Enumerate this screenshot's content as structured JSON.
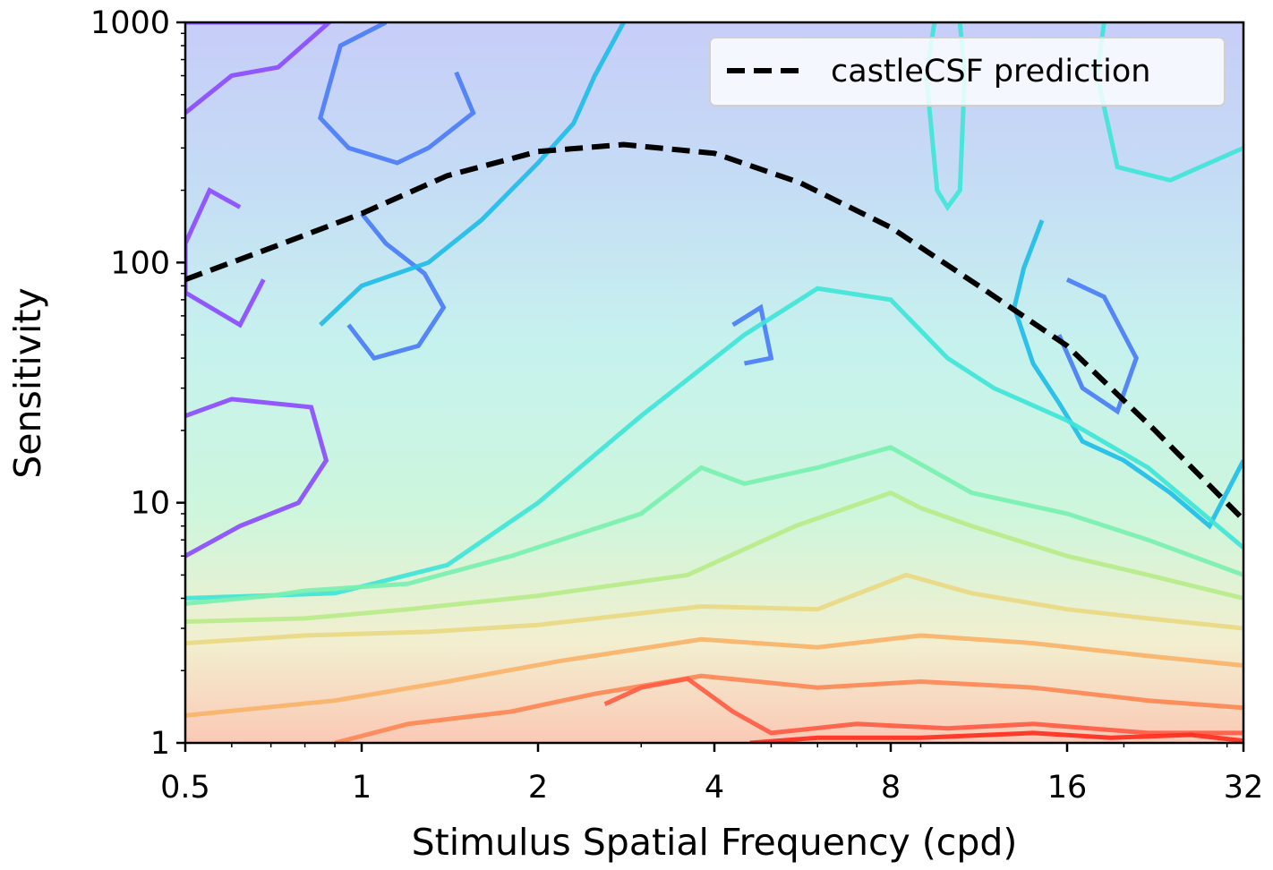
{
  "chart_data": {
    "type": "contour",
    "x_scale": "log2",
    "y_scale": "log10",
    "xlim": [
      0.5,
      32
    ],
    "ylim": [
      1,
      1000
    ],
    "xlabel": "Stimulus Spatial Frequency (cpd)",
    "ylabel": "Sensitivity",
    "x_ticks": [
      0.5,
      1,
      2,
      4,
      8,
      16,
      32
    ],
    "x_tick_labels": [
      "0.5",
      "1",
      "2",
      "4",
      "8",
      "16",
      "32"
    ],
    "y_ticks": [
      1,
      10,
      100,
      1000
    ],
    "y_tick_labels": [
      "1",
      "10",
      "100",
      "1000"
    ],
    "grid": false,
    "legend": {
      "placement": "top-right",
      "entries": [
        {
          "label": "castleCSF prediction",
          "style": "dashed",
          "color": "#000000"
        }
      ]
    },
    "colormap": "rainbow",
    "series": [
      {
        "name": "castleCSF prediction",
        "kind": "line",
        "x": [
          0.5,
          0.7,
          1,
          1.4,
          2,
          2.8,
          4,
          5.6,
          8,
          11.3,
          16,
          22.6,
          32
        ],
        "y": [
          85,
          115,
          160,
          230,
          290,
          310,
          285,
          215,
          140,
          80,
          45,
          20,
          8.5
        ]
      }
    ],
    "contour_bands": [
      {
        "level": 0,
        "color": "#8b4cff",
        "points": [
          [
            0.5,
            1000
          ],
          [
            0.88,
            1000
          ],
          [
            0.72,
            650
          ],
          [
            0.6,
            600
          ],
          [
            0.5,
            420
          ]
        ]
      },
      {
        "level": 0,
        "color": "#8b4cff",
        "points": [
          [
            0.5,
            23
          ],
          [
            0.6,
            27
          ],
          [
            0.82,
            25
          ],
          [
            0.87,
            15
          ],
          [
            0.78,
            10
          ],
          [
            0.62,
            8
          ],
          [
            0.5,
            6
          ]
        ]
      },
      {
        "level": 0,
        "color": "#8b4cff",
        "points": [
          [
            0.62,
            170
          ],
          [
            0.55,
            200
          ],
          [
            0.5,
            120
          ],
          [
            0.5,
            75
          ],
          [
            0.62,
            55
          ],
          [
            0.68,
            85
          ]
        ]
      },
      {
        "level": 1,
        "color": "#4a7df7",
        "points": [
          [
            1.1,
            1000
          ],
          [
            0.92,
            800
          ],
          [
            0.85,
            400
          ],
          [
            0.95,
            300
          ],
          [
            1.15,
            260
          ],
          [
            1.3,
            300
          ],
          [
            1.55,
            420
          ],
          [
            1.45,
            620
          ]
        ]
      },
      {
        "level": 1,
        "color": "#4a7df7",
        "points": [
          [
            1.0,
            160
          ],
          [
            1.1,
            120
          ],
          [
            1.28,
            90
          ],
          [
            1.38,
            65
          ],
          [
            1.25,
            45
          ],
          [
            1.05,
            40
          ],
          [
            0.95,
            55
          ]
        ]
      },
      {
        "level": 1,
        "color": "#4a7df7",
        "points": [
          [
            16,
            85
          ],
          [
            18.5,
            72
          ],
          [
            21,
            40
          ],
          [
            19.5,
            24
          ],
          [
            17,
            30
          ],
          [
            15.5,
            50
          ]
        ]
      },
      {
        "level": 1,
        "color": "#4a7df7",
        "points": [
          [
            4.3,
            55
          ],
          [
            4.8,
            65
          ],
          [
            5.0,
            40
          ],
          [
            4.5,
            38
          ]
        ]
      },
      {
        "level": 2,
        "color": "#1fbde8",
        "points": [
          [
            2.8,
            1000
          ],
          [
            2.5,
            600
          ],
          [
            2.3,
            380
          ],
          [
            2.0,
            260
          ],
          [
            1.6,
            150
          ],
          [
            1.3,
            100
          ],
          [
            1.0,
            80
          ],
          [
            0.85,
            55
          ]
        ]
      },
      {
        "level": 2,
        "color": "#1fbde8",
        "points": [
          [
            14.5,
            150
          ],
          [
            13.5,
            95
          ],
          [
            13,
            65
          ],
          [
            14,
            38
          ],
          [
            15.5,
            26
          ],
          [
            17,
            18
          ],
          [
            20,
            15
          ],
          [
            24,
            11
          ],
          [
            28,
            8
          ],
          [
            32,
            15
          ]
        ]
      },
      {
        "level": 3,
        "color": "#3fe5d8",
        "points": [
          [
            0.5,
            4
          ],
          [
            0.9,
            4.2
          ],
          [
            1.4,
            5.5
          ],
          [
            2,
            10
          ],
          [
            3,
            23
          ],
          [
            4.5,
            50
          ],
          [
            6,
            78
          ],
          [
            8,
            70
          ],
          [
            10,
            40
          ],
          [
            12,
            30
          ],
          [
            16,
            22
          ],
          [
            22,
            14
          ],
          [
            32,
            6.5
          ]
        ]
      },
      {
        "level": 3,
        "color": "#3fe5d8",
        "points": [
          [
            9.5,
            1000
          ],
          [
            9.2,
            600
          ],
          [
            9.6,
            200
          ],
          [
            10,
            170
          ],
          [
            10.5,
            200
          ],
          [
            10.7,
            600
          ],
          [
            10.5,
            1000
          ]
        ]
      },
      {
        "level": 3,
        "color": "#3fe5d8",
        "points": [
          [
            18.5,
            1000
          ],
          [
            18,
            600
          ],
          [
            19.5,
            250
          ],
          [
            24,
            220
          ],
          [
            32,
            300
          ]
        ]
      },
      {
        "level": 4,
        "color": "#7af0b0",
        "points": [
          [
            0.5,
            3.8
          ],
          [
            0.7,
            4.1
          ],
          [
            0.8,
            4.3
          ],
          [
            1.2,
            4.6
          ],
          [
            1.8,
            6
          ],
          [
            3,
            9
          ],
          [
            3.8,
            14
          ],
          [
            4.5,
            12
          ],
          [
            6,
            14
          ],
          [
            8,
            17
          ],
          [
            11,
            11
          ],
          [
            16,
            9
          ],
          [
            22,
            7
          ],
          [
            32,
            5
          ]
        ]
      },
      {
        "level": 5,
        "color": "#b8ec8a",
        "points": [
          [
            0.5,
            3.2
          ],
          [
            0.8,
            3.3
          ],
          [
            1.2,
            3.6
          ],
          [
            2,
            4.1
          ],
          [
            3.6,
            5
          ],
          [
            5.5,
            8
          ],
          [
            8,
            11
          ],
          [
            9,
            9.5
          ],
          [
            11,
            8
          ],
          [
            16,
            6
          ],
          [
            22,
            5
          ],
          [
            32,
            4
          ]
        ]
      },
      {
        "level": 6,
        "color": "#e9d983",
        "points": [
          [
            0.5,
            2.6
          ],
          [
            0.8,
            2.8
          ],
          [
            1.3,
            2.9
          ],
          [
            2,
            3.1
          ],
          [
            3.8,
            3.7
          ],
          [
            6,
            3.6
          ],
          [
            8.5,
            5
          ],
          [
            11,
            4.2
          ],
          [
            16,
            3.6
          ],
          [
            22,
            3.3
          ],
          [
            32,
            3
          ]
        ]
      },
      {
        "level": 7,
        "color": "#f8b36a",
        "points": [
          [
            0.5,
            1.3
          ],
          [
            0.9,
            1.5
          ],
          [
            1.4,
            1.8
          ],
          [
            2.2,
            2.2
          ],
          [
            3.8,
            2.7
          ],
          [
            6,
            2.5
          ],
          [
            9,
            2.8
          ],
          [
            14,
            2.6
          ],
          [
            22,
            2.3
          ],
          [
            32,
            2.1
          ]
        ]
      },
      {
        "level": 8,
        "color": "#fc8856",
        "points": [
          [
            0.9,
            1.0
          ],
          [
            1.2,
            1.2
          ],
          [
            1.8,
            1.35
          ],
          [
            2.5,
            1.6
          ],
          [
            3.8,
            1.9
          ],
          [
            6,
            1.7
          ],
          [
            9,
            1.8
          ],
          [
            14,
            1.7
          ],
          [
            22,
            1.5
          ],
          [
            32,
            1.4
          ]
        ]
      },
      {
        "level": 9,
        "color": "#ff5c44",
        "points": [
          [
            2.6,
            1.45
          ],
          [
            3,
            1.7
          ],
          [
            3.6,
            1.85
          ],
          [
            4.3,
            1.35
          ],
          [
            5,
            1.1
          ],
          [
            7,
            1.2
          ],
          [
            10,
            1.15
          ],
          [
            14,
            1.2
          ],
          [
            22,
            1.1
          ],
          [
            32,
            1.1
          ]
        ]
      },
      {
        "level": 10,
        "color": "#ff2e1e",
        "points": [
          [
            4.6,
            1.0
          ],
          [
            6,
            1.05
          ],
          [
            9,
            1.05
          ],
          [
            14,
            1.1
          ],
          [
            19,
            1.05
          ],
          [
            26,
            1.08
          ],
          [
            32,
            1.02
          ]
        ]
      }
    ]
  }
}
